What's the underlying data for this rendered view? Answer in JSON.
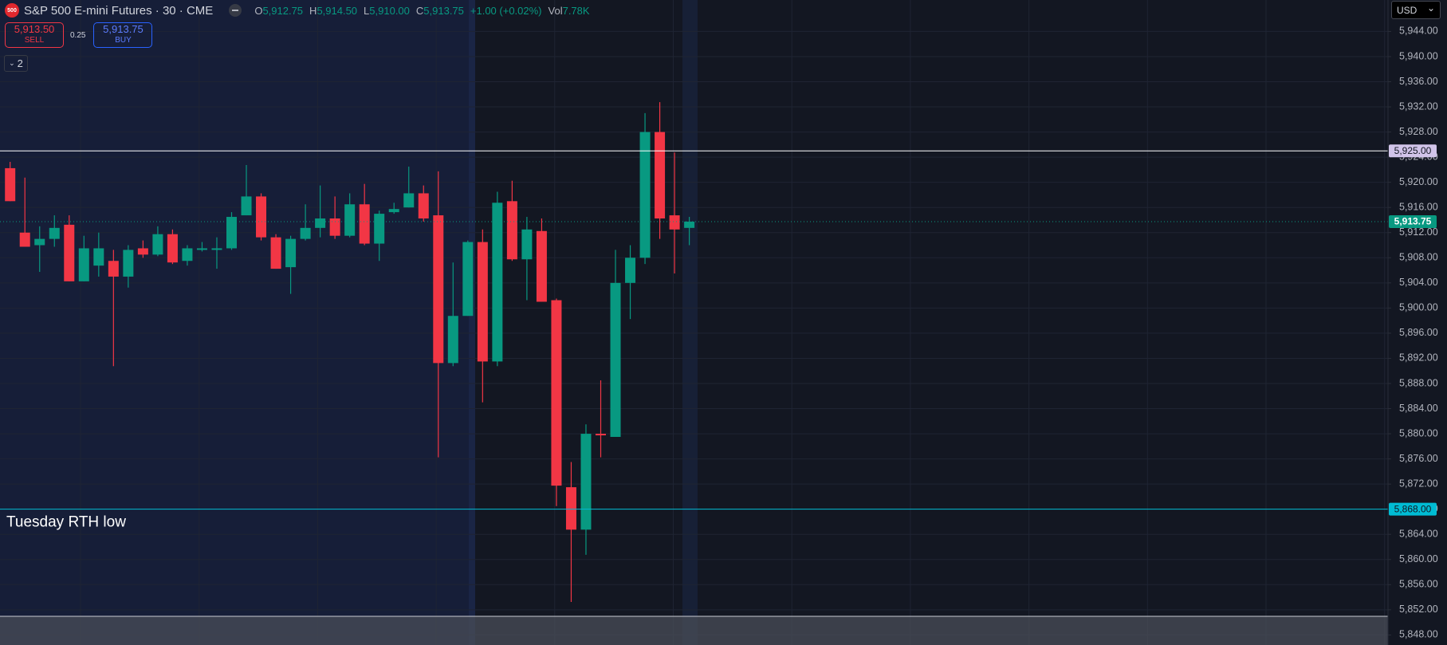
{
  "header": {
    "symbol_icon": "500",
    "title": "S&P 500 E-mini Futures · 30 · CME",
    "ohlc": [
      {
        "label": "O",
        "value": "5,912.75"
      },
      {
        "label": "H",
        "value": "5,914.50"
      },
      {
        "label": "L",
        "value": "5,910.00"
      },
      {
        "label": "C",
        "value": "5,913.75"
      }
    ],
    "change": "+1.00 (+0.02%)",
    "volume": {
      "label": "Vol",
      "value": "7.78K"
    }
  },
  "trade": {
    "sell": {
      "price": "5,913.50",
      "label": "SELL"
    },
    "spread": "0.25",
    "buy": {
      "price": "5,913.75",
      "label": "BUY"
    }
  },
  "indicators_toggle": "2",
  "currency": "USD",
  "chart_data": {
    "type": "candlestick",
    "up_color": "#089981",
    "down_color": "#f23645",
    "open": [
      5922.25,
      5912.0,
      5910.0,
      5911.0,
      5913.25,
      5904.25,
      5906.75,
      5907.5,
      5905.0,
      5909.5,
      5908.5,
      5911.75,
      5907.5,
      5909.25,
      5909.25,
      5909.5,
      5914.75,
      5917.75,
      5911.25,
      5906.5,
      5911.0,
      5912.75,
      5914.25,
      5911.5,
      5916.5,
      5910.25,
      5915.25,
      5916.0,
      5918.25,
      5914.75,
      5891.25,
      5898.75,
      5910.5,
      5891.5,
      5917.0,
      5907.75,
      5912.25,
      5901.25,
      5871.5,
      5864.75,
      5880.0,
      5879.5,
      5904.0,
      5908.0,
      5928.0,
      5914.75,
      5912.75
    ],
    "high": [
      5923.25,
      5920.75,
      5913.0,
      5914.75,
      5914.75,
      5911.5,
      5912.0,
      5909.25,
      5910.0,
      5910.75,
      5913.0,
      5912.5,
      5910.0,
      5910.5,
      5911.25,
      5915.25,
      5922.75,
      5918.25,
      5911.75,
      5911.5,
      5916.5,
      5919.5,
      5917.75,
      5918.25,
      5919.75,
      5915.5,
      5916.75,
      5922.5,
      5919.5,
      5921.75,
      5907.25,
      5910.75,
      5912.5,
      5918.5,
      5920.25,
      5914.5,
      5914.25,
      5901.5,
      5875.5,
      5881.5,
      5888.5,
      5909.25,
      5910.0,
      5931.0,
      5932.75,
      5924.75,
      5914.5
    ],
    "low": [
      5917.0,
      5909.75,
      5905.75,
      5909.75,
      5904.25,
      5904.25,
      5905.0,
      5890.75,
      5903.25,
      5908.0,
      5908.25,
      5907.0,
      5906.75,
      5909.0,
      5906.25,
      5909.25,
      5914.75,
      5910.75,
      5906.25,
      5902.25,
      5910.75,
      5911.25,
      5911.0,
      5911.25,
      5910.0,
      5907.5,
      5915.0,
      5916.0,
      5913.75,
      5876.25,
      5890.75,
      5898.75,
      5885.0,
      5890.75,
      5907.5,
      5901.25,
      5901.0,
      5868.5,
      5853.25,
      5860.75,
      5876.25,
      5879.5,
      5898.25,
      5907.0,
      5911.0,
      5905.5,
      5910.0
    ],
    "close": [
      5917.0,
      5909.75,
      5911.0,
      5912.75,
      5904.25,
      5909.5,
      5909.5,
      5905.0,
      5909.25,
      5908.5,
      5911.75,
      5907.25,
      5909.5,
      5909.5,
      5909.5,
      5914.5,
      5917.75,
      5911.25,
      5906.25,
      5911.0,
      5912.75,
      5914.25,
      5911.5,
      5916.5,
      5910.25,
      5915.0,
      5915.75,
      5918.25,
      5914.25,
      5891.25,
      5898.75,
      5910.5,
      5891.5,
      5916.75,
      5907.75,
      5912.5,
      5901.0,
      5871.75,
      5864.75,
      5880.0,
      5879.75,
      5904.0,
      5908.0,
      5928.0,
      5914.25,
      5912.5,
      5913.75
    ],
    "ylim": [
      5846.4,
      5949.0
    ],
    "yticks": [
      {
        "value": 5944,
        "label": "5,944.00"
      },
      {
        "value": 5940,
        "label": "5,940.00"
      },
      {
        "value": 5936,
        "label": "5,936.00"
      },
      {
        "value": 5932,
        "label": "5,932.00"
      },
      {
        "value": 5928,
        "label": "5,928.00"
      },
      {
        "value": 5924,
        "label": "5,924.00"
      },
      {
        "value": 5920,
        "label": "5,920.00"
      },
      {
        "value": 5916,
        "label": "5,916.00"
      },
      {
        "value": 5912,
        "label": "5,912.00"
      },
      {
        "value": 5908,
        "label": "5,908.00"
      },
      {
        "value": 5904,
        "label": "5,904.00"
      },
      {
        "value": 5900,
        "label": "5,900.00"
      },
      {
        "value": 5896,
        "label": "5,896.00"
      },
      {
        "value": 5892,
        "label": "5,892.00"
      },
      {
        "value": 5888,
        "label": "5,888.00"
      },
      {
        "value": 5884,
        "label": "5,884.00"
      },
      {
        "value": 5880,
        "label": "5,880.00"
      },
      {
        "value": 5876,
        "label": "5,876.00"
      },
      {
        "value": 5872,
        "label": "5,872.00"
      },
      {
        "value": 5868,
        "label": "5,868.00"
      },
      {
        "value": 5864,
        "label": "5,864.00"
      },
      {
        "value": 5860,
        "label": "5,860.00"
      },
      {
        "value": 5856,
        "label": "5,856.00"
      },
      {
        "value": 5852,
        "label": "5,852.00"
      },
      {
        "value": 5848,
        "label": "5,848.00"
      }
    ],
    "grid": true,
    "levels": [
      {
        "value": 5925,
        "label": "5,925.00",
        "color": "#ffffff",
        "label_color": "#d1c4e9"
      },
      {
        "value": 5868,
        "label": "5,868.00",
        "color": "#00bcd4",
        "label_color": "#00bcd4",
        "text": "Tuesday RTH low"
      },
      {
        "value": 5913.75,
        "label": "5,913.75",
        "color": "#089981",
        "label_color": "#089981",
        "style": "dotted"
      }
    ]
  }
}
